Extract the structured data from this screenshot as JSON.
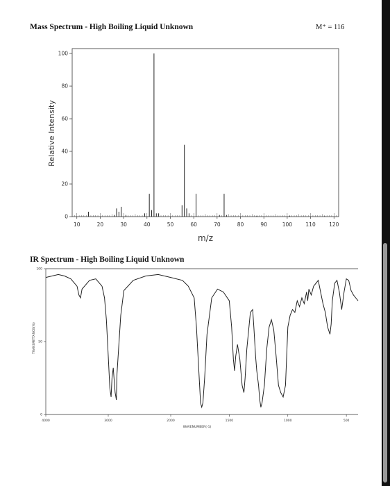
{
  "document": {
    "ms_title": "Mass Spectrum - High Boiling Liquid Unknown",
    "molecular_ion": "M⁺ = 116",
    "ir_title": "IR Spectrum - High Boiling Liquid Unknown"
  },
  "chart_data": [
    {
      "type": "bar",
      "title": "Mass Spectrum - High Boiling Liquid Unknown",
      "xlabel": "m/z",
      "ylabel": "Relative Intensity",
      "xlim": [
        8,
        122
      ],
      "ylim": [
        0,
        103
      ],
      "xticks": [
        10,
        20,
        30,
        40,
        50,
        60,
        70,
        80,
        90,
        100,
        110,
        120
      ],
      "yticks": [
        0,
        20,
        40,
        60,
        80,
        100
      ],
      "x": [
        15,
        26,
        27,
        28,
        29,
        31,
        39,
        41,
        42,
        43,
        44,
        45,
        55,
        56,
        57,
        58,
        61,
        71,
        73,
        74,
        87,
        101,
        116
      ],
      "values": [
        3,
        1,
        5,
        3,
        6,
        1,
        2,
        14,
        4,
        100,
        2,
        2,
        7,
        44,
        5,
        2,
        14,
        1,
        14,
        1,
        0.5,
        0.5,
        0.3
      ]
    },
    {
      "type": "line",
      "title": "IR Spectrum - High Boiling Liquid Unknown",
      "xlabel": "WAVENUMBER(-1)",
      "ylabel": "TRANSMITTANCE(%)",
      "xlim": [
        4000,
        400
      ],
      "ylim": [
        0,
        100
      ],
      "xticks": [
        4000,
        3000,
        2000,
        1500,
        1000,
        500
      ],
      "yticks": [
        0,
        50,
        100
      ],
      "x": [
        4000,
        3900,
        3800,
        3700,
        3600,
        3500,
        3470,
        3445,
        3420,
        3300,
        3200,
        3100,
        3060,
        3030,
        3000,
        2975,
        2955,
        2940,
        2920,
        2890,
        2870,
        2860,
        2800,
        2750,
        2600,
        2400,
        2200,
        2000,
        1900,
        1850,
        1800,
        1780,
        1760,
        1745,
        1735,
        1725,
        1710,
        1690,
        1650,
        1600,
        1550,
        1500,
        1480,
        1465,
        1455,
        1445,
        1430,
        1410,
        1390,
        1375,
        1365,
        1350,
        1320,
        1300,
        1290,
        1275,
        1265,
        1250,
        1240,
        1230,
        1220,
        1200,
        1180,
        1160,
        1140,
        1120,
        1100,
        1080,
        1060,
        1040,
        1020,
        1010,
        1000,
        980,
        960,
        940,
        920,
        900,
        880,
        860,
        840,
        830,
        820,
        800,
        780,
        760,
        740,
        720,
        700,
        680,
        660,
        640,
        630,
        620,
        600,
        580,
        560,
        540,
        520,
        500,
        480,
        460,
        440,
        420,
        400
      ],
      "values": [
        94,
        95,
        96,
        95,
        93,
        88,
        82,
        80,
        86,
        92,
        93,
        88,
        80,
        65,
        40,
        18,
        12,
        25,
        32,
        15,
        10,
        28,
        68,
        85,
        92,
        95,
        96,
        94,
        92,
        88,
        80,
        60,
        30,
        8,
        5,
        8,
        25,
        55,
        80,
        86,
        84,
        78,
        60,
        38,
        30,
        40,
        48,
        38,
        20,
        15,
        25,
        45,
        70,
        72,
        60,
        40,
        30,
        20,
        10,
        5,
        8,
        20,
        45,
        60,
        65,
        58,
        40,
        20,
        15,
        12,
        20,
        40,
        60,
        68,
        72,
        70,
        78,
        74,
        80,
        76,
        84,
        78,
        86,
        82,
        88,
        90,
        92,
        84,
        76,
        70,
        60,
        55,
        62,
        78,
        90,
        92,
        84,
        72,
        84,
        93,
        92,
        85,
        82,
        80,
        78
      ]
    }
  ]
}
